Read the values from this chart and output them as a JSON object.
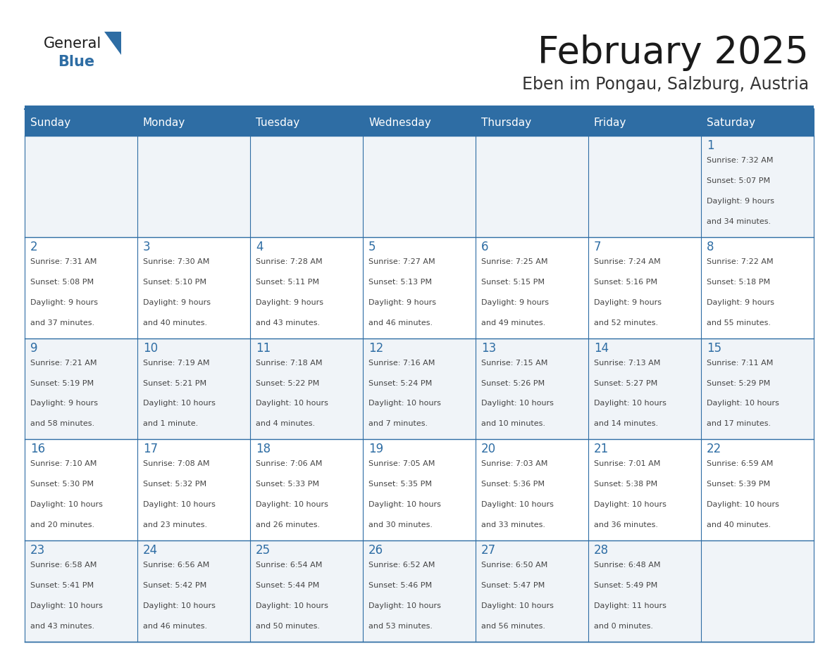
{
  "title": "February 2025",
  "subtitle": "Eben im Pongau, Salzburg, Austria",
  "header_bg": "#2E6DA4",
  "header_text": "#FFFFFF",
  "cell_bg_odd": "#F0F4F8",
  "cell_bg_even": "#FFFFFF",
  "border_color": "#2E6DA4",
  "title_color": "#1a1a1a",
  "subtitle_color": "#333333",
  "day_number_color": "#2E6DA4",
  "cell_text_color": "#444444",
  "logo_text_color": "#1a1a1a",
  "logo_blue_color": "#2E6DA4",
  "days_of_week": [
    "Sunday",
    "Monday",
    "Tuesday",
    "Wednesday",
    "Thursday",
    "Friday",
    "Saturday"
  ],
  "weeks": [
    [
      {
        "day": null,
        "info": null
      },
      {
        "day": null,
        "info": null
      },
      {
        "day": null,
        "info": null
      },
      {
        "day": null,
        "info": null
      },
      {
        "day": null,
        "info": null
      },
      {
        "day": null,
        "info": null
      },
      {
        "day": "1",
        "info": "Sunrise: 7:32 AM\nSunset: 5:07 PM\nDaylight: 9 hours\nand 34 minutes."
      }
    ],
    [
      {
        "day": "2",
        "info": "Sunrise: 7:31 AM\nSunset: 5:08 PM\nDaylight: 9 hours\nand 37 minutes."
      },
      {
        "day": "3",
        "info": "Sunrise: 7:30 AM\nSunset: 5:10 PM\nDaylight: 9 hours\nand 40 minutes."
      },
      {
        "day": "4",
        "info": "Sunrise: 7:28 AM\nSunset: 5:11 PM\nDaylight: 9 hours\nand 43 minutes."
      },
      {
        "day": "5",
        "info": "Sunrise: 7:27 AM\nSunset: 5:13 PM\nDaylight: 9 hours\nand 46 minutes."
      },
      {
        "day": "6",
        "info": "Sunrise: 7:25 AM\nSunset: 5:15 PM\nDaylight: 9 hours\nand 49 minutes."
      },
      {
        "day": "7",
        "info": "Sunrise: 7:24 AM\nSunset: 5:16 PM\nDaylight: 9 hours\nand 52 minutes."
      },
      {
        "day": "8",
        "info": "Sunrise: 7:22 AM\nSunset: 5:18 PM\nDaylight: 9 hours\nand 55 minutes."
      }
    ],
    [
      {
        "day": "9",
        "info": "Sunrise: 7:21 AM\nSunset: 5:19 PM\nDaylight: 9 hours\nand 58 minutes."
      },
      {
        "day": "10",
        "info": "Sunrise: 7:19 AM\nSunset: 5:21 PM\nDaylight: 10 hours\nand 1 minute."
      },
      {
        "day": "11",
        "info": "Sunrise: 7:18 AM\nSunset: 5:22 PM\nDaylight: 10 hours\nand 4 minutes."
      },
      {
        "day": "12",
        "info": "Sunrise: 7:16 AM\nSunset: 5:24 PM\nDaylight: 10 hours\nand 7 minutes."
      },
      {
        "day": "13",
        "info": "Sunrise: 7:15 AM\nSunset: 5:26 PM\nDaylight: 10 hours\nand 10 minutes."
      },
      {
        "day": "14",
        "info": "Sunrise: 7:13 AM\nSunset: 5:27 PM\nDaylight: 10 hours\nand 14 minutes."
      },
      {
        "day": "15",
        "info": "Sunrise: 7:11 AM\nSunset: 5:29 PM\nDaylight: 10 hours\nand 17 minutes."
      }
    ],
    [
      {
        "day": "16",
        "info": "Sunrise: 7:10 AM\nSunset: 5:30 PM\nDaylight: 10 hours\nand 20 minutes."
      },
      {
        "day": "17",
        "info": "Sunrise: 7:08 AM\nSunset: 5:32 PM\nDaylight: 10 hours\nand 23 minutes."
      },
      {
        "day": "18",
        "info": "Sunrise: 7:06 AM\nSunset: 5:33 PM\nDaylight: 10 hours\nand 26 minutes."
      },
      {
        "day": "19",
        "info": "Sunrise: 7:05 AM\nSunset: 5:35 PM\nDaylight: 10 hours\nand 30 minutes."
      },
      {
        "day": "20",
        "info": "Sunrise: 7:03 AM\nSunset: 5:36 PM\nDaylight: 10 hours\nand 33 minutes."
      },
      {
        "day": "21",
        "info": "Sunrise: 7:01 AM\nSunset: 5:38 PM\nDaylight: 10 hours\nand 36 minutes."
      },
      {
        "day": "22",
        "info": "Sunrise: 6:59 AM\nSunset: 5:39 PM\nDaylight: 10 hours\nand 40 minutes."
      }
    ],
    [
      {
        "day": "23",
        "info": "Sunrise: 6:58 AM\nSunset: 5:41 PM\nDaylight: 10 hours\nand 43 minutes."
      },
      {
        "day": "24",
        "info": "Sunrise: 6:56 AM\nSunset: 5:42 PM\nDaylight: 10 hours\nand 46 minutes."
      },
      {
        "day": "25",
        "info": "Sunrise: 6:54 AM\nSunset: 5:44 PM\nDaylight: 10 hours\nand 50 minutes."
      },
      {
        "day": "26",
        "info": "Sunrise: 6:52 AM\nSunset: 5:46 PM\nDaylight: 10 hours\nand 53 minutes."
      },
      {
        "day": "27",
        "info": "Sunrise: 6:50 AM\nSunset: 5:47 PM\nDaylight: 10 hours\nand 56 minutes."
      },
      {
        "day": "28",
        "info": "Sunrise: 6:48 AM\nSunset: 5:49 PM\nDaylight: 11 hours\nand 0 minutes."
      },
      {
        "day": null,
        "info": null
      }
    ]
  ]
}
